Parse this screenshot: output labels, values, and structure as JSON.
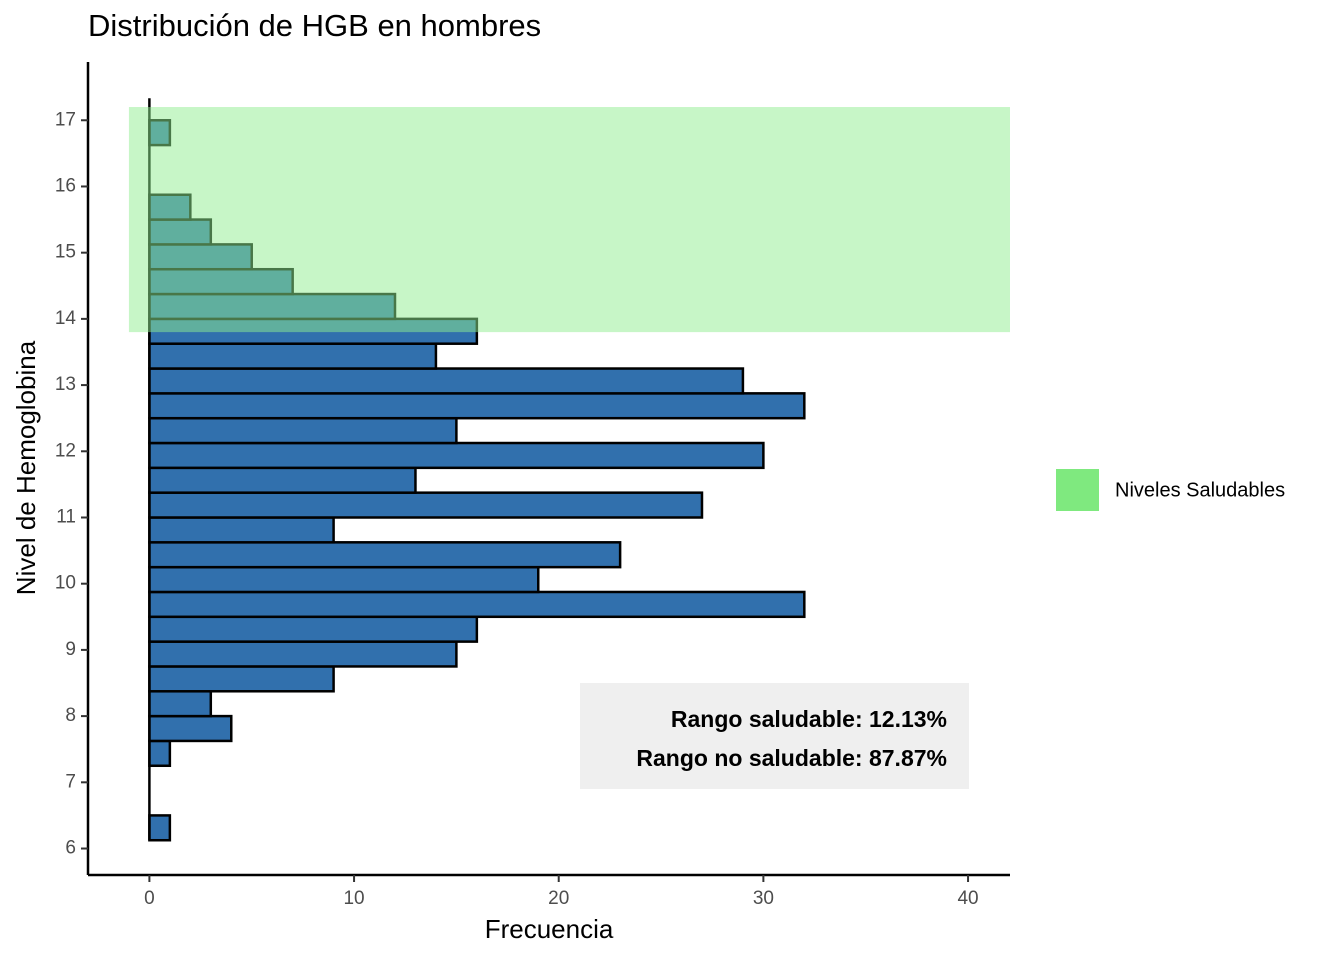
{
  "chart_data": {
    "type": "histogram",
    "orientation": "horizontal",
    "title": "Distribución de HGB en hombres",
    "x_label": "Frecuencia",
    "y_label": "Nivel de Hemoglobina",
    "bins": [
      6.125,
      6.5,
      6.875,
      7.25,
      7.625,
      8.0,
      8.375,
      8.75,
      9.125,
      9.5,
      9.875,
      10.25,
      10.625,
      11.0,
      11.375,
      11.75,
      12.125,
      12.5,
      12.875,
      13.25,
      13.625,
      14.0,
      14.375,
      14.75,
      15.125,
      15.5,
      15.875,
      16.25,
      16.625,
      17.0
    ],
    "values": [
      1,
      0,
      0,
      1,
      4,
      3,
      9,
      15,
      16,
      32,
      19,
      23,
      9,
      27,
      13,
      30,
      15,
      32,
      29,
      14,
      16,
      12,
      7,
      5,
      3,
      2,
      0,
      0,
      1
    ],
    "color": "#3170ad",
    "xlim": [
      -3,
      42.05
    ],
    "ylim": [
      5.6,
      17.88
    ],
    "xticks": [
      0,
      10,
      20,
      30,
      40
    ],
    "yticks": [
      6,
      7,
      8,
      9,
      10,
      11,
      12,
      13,
      14,
      15,
      16,
      17
    ],
    "healthy_band": {
      "name": "Niveles Saludables",
      "color": "#90ee90",
      "xmin": -1,
      "xmax": 42.05,
      "ymin": 13.8,
      "ymax": 17.2
    },
    "annotation": [
      "Rango saludable: 12.13%",
      "Rango no saludable: 87.87%"
    ]
  }
}
